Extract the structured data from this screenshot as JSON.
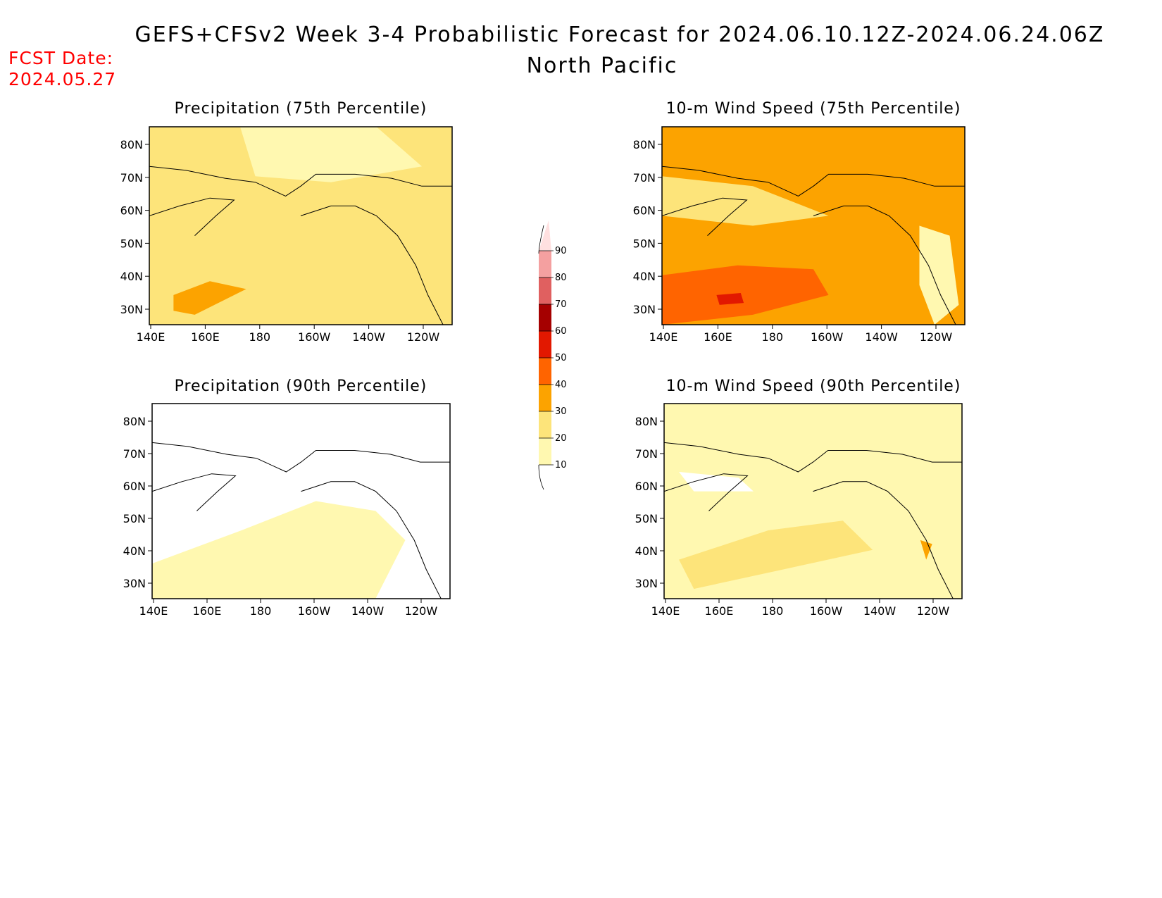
{
  "title": "GEFS+CFSv2 Week 3-4 Probabilistic Forecast for 2024.06.10.12Z-2024.06.24.06Z",
  "subtitle": "North Pacific",
  "fcst_label": "FCST Date:",
  "fcst_date": "2024.05.27",
  "colorbar": {
    "levels": [
      "10",
      "20",
      "30",
      "40",
      "50",
      "60",
      "70",
      "80",
      "90"
    ],
    "colors": [
      "#fff8b0",
      "#fde47a",
      "#fca300",
      "#ff6400",
      "#e21800",
      "#a50000",
      "#e06060",
      "#f4a0a0",
      "#ffe0e0"
    ]
  },
  "lat_labels": [
    "80N",
    "70N",
    "60N",
    "50N",
    "40N",
    "30N"
  ],
  "lon_labels": [
    "140E",
    "160E",
    "180",
    "160W",
    "140W",
    "120W"
  ],
  "panels": [
    {
      "id": "precip75",
      "title": "Precipitation (75th Percentile)",
      "background": "#fde47a",
      "fields": [
        "#fff8b0",
        "#fca300"
      ]
    },
    {
      "id": "wind75",
      "title": "10-m Wind Speed (75th Percentile)",
      "background": "#fca300",
      "fields": [
        "#ff6400",
        "#fde47a",
        "#fff8b0",
        "#e21800"
      ]
    },
    {
      "id": "precip90",
      "title": "Precipitation (90th Percentile)",
      "background": "#ffffff",
      "fields": [
        "#fff8b0"
      ]
    },
    {
      "id": "wind90",
      "title": "10-m Wind Speed (90th Percentile)",
      "background": "#fff8b0",
      "fields": [
        "#fde47a",
        "#ffffff",
        "#fca300"
      ]
    }
  ]
}
